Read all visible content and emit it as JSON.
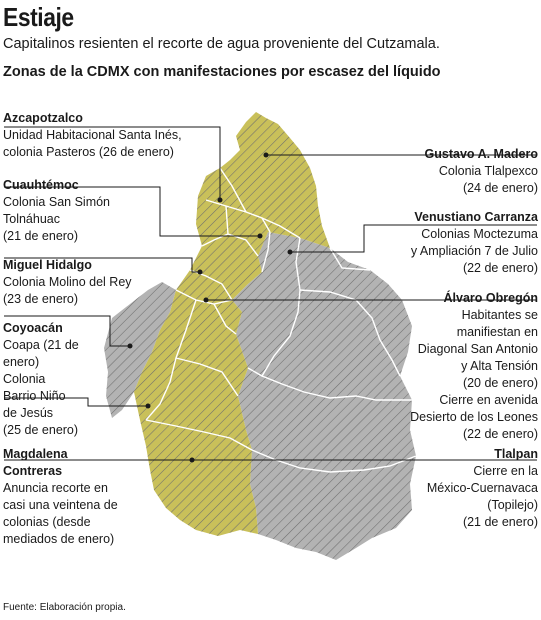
{
  "title": "Estiaje",
  "subtitle": "Capitalinos resienten el recorte de agua proveniente del Cutzamala.",
  "heading": "Zonas de la CDMX con manifestaciones por escasez del líquido",
  "colors": {
    "affected": "#c9c05a",
    "unaffected": "#b3b3b3",
    "hatch": "#7a7a7a",
    "border": "#ffffff"
  },
  "labels": {
    "azcapotzalco": {
      "name": "Azcapotzalco",
      "desc": "Unidad Habitacional Santa Inés,\ncolonia Pasteros (26 de enero)"
    },
    "cuauhtemoc": {
      "name": "Cuauhtémoc",
      "desc": "Colonia San Simón\nTolnáhuac\n(21 de enero)"
    },
    "miguel_hidalgo": {
      "name": "Miguel Hidalgo",
      "desc": "Colonia Molino del Rey\n(23 de enero)"
    },
    "coyoacan": {
      "name": "Coyoacán",
      "desc": "Coapa (21 de\nenero)\nColonia\nBarrio Niño\nde Jesús\n(25 de enero)"
    },
    "magdalena": {
      "name": "Magdalena\nContreras",
      "desc": "Anuncia recorte en\ncasi una veintena de\ncolonias (desde\nmediados de enero)"
    },
    "gustavo": {
      "name": "Gustavo A. Madero",
      "desc": "Colonia Tlalpexco\n(24 de enero)"
    },
    "venustiano": {
      "name": "Venustiano Carranza",
      "desc": "Colonias Moctezuma\ny Ampliación 7 de Julio\n(22 de enero)"
    },
    "alvaro": {
      "name": "Álvaro Obregón",
      "desc": "Habitantes se\nmanifiestan en\nDiagonal San Antonio\ny Alta Tensión\n(20 de enero)\nCierre en avenida\nDesierto de los Leones\n(22 de enero)"
    },
    "tlalpan": {
      "name": "Tlalpan",
      "desc": "Cierre en la\nMéxico-Cuernavaca\n(Topilejo)\n(21 de enero)"
    }
  },
  "source": "Fuente: Elaboración propia."
}
